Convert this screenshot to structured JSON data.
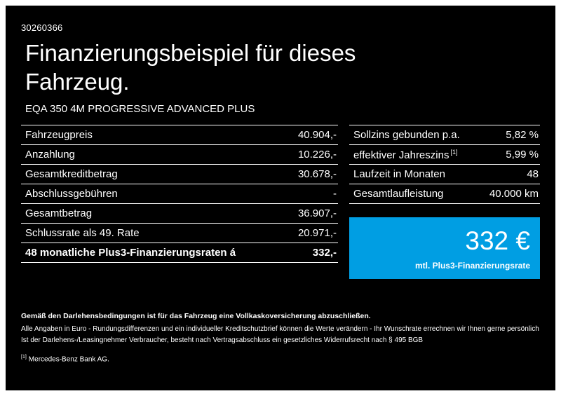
{
  "page": {
    "doc_number": "30260366",
    "title_line1": "Finanzierungsbeispiel für dieses",
    "title_line2": "Fahrzeug.",
    "model": "EQA 350 4M PROGRESSIVE ADVANCED PLUS",
    "background_color": "#000000",
    "text_color": "#ffffff"
  },
  "finance_table": {
    "rows": [
      {
        "label": "Fahrzeugpreis",
        "value": "40.904,-"
      },
      {
        "label": "Anzahlung",
        "value": "10.226,-"
      },
      {
        "label": "Gesamtkreditbetrag",
        "value": "30.678,-"
      },
      {
        "label": "Abschlussgebühren",
        "value": "-"
      },
      {
        "label": "Gesamtbetrag",
        "value": "36.907,-"
      },
      {
        "label": "Schlussrate als 49. Rate",
        "value": "20.971,-"
      },
      {
        "label": "48 monatliche Plus3-Finanzierungsraten á",
        "value": "332,-"
      }
    ]
  },
  "conditions_table": {
    "rows": [
      {
        "label": "Sollzins gebunden p.a.",
        "value": "5,82 %"
      },
      {
        "label": "effektiver Jahreszins",
        "sup": "[1]",
        "value": "5,99 %"
      },
      {
        "label": "Laufzeit in Monaten",
        "value": "48"
      },
      {
        "label": "Gesamtlaufleistung",
        "value": "40.000 km"
      }
    ]
  },
  "rate_box": {
    "amount": "332 €",
    "caption": "mtl. Plus3-Finanzierungsrate",
    "color": "#009EE3"
  },
  "footer": {
    "line1": "Gemäß den Darlehensbedingungen ist für das Fahrzeug eine Vollkaskoversicherung abzuschließen.",
    "line2": "Alle Angaben in Euro - Rundungsdifferenzen und ein individueller Kreditschutzbrief können die Werte verändern - Ihr Wunschrate errechnen wir Ihnen gerne persönlich",
    "line3": "Ist der Darlehens-/Leasingnehmer Verbraucher, besteht nach Vertragsabschluss ein gesetzliches Widerrufsrecht nach § 495 BGB",
    "footnote_marker": "[1]",
    "footnote_text": "Mercedes-Benz Bank AG."
  }
}
